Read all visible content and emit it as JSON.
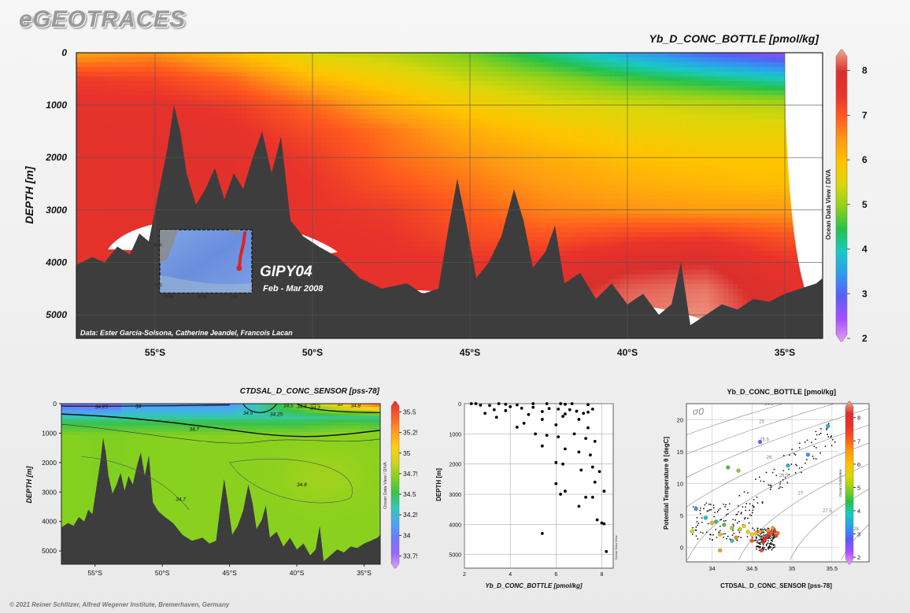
{
  "brand": "eGEOTRACES",
  "copyright": "© 2021 Reiner Schlitzer, Alfred Wegener Institute, Bremerhaven, Germany",
  "watermark": "Ocean Data View / DIVA",
  "watermark_small": "Ocean Data View",
  "colors": {
    "cmap": [
      "#e79bf5",
      "#a64fff",
      "#5a5cf6",
      "#2f9bf0",
      "#19c9c6",
      "#25c24a",
      "#8fd11a",
      "#dcd60a",
      "#ffc400",
      "#ff9a12",
      "#ff5a1e",
      "#e8322b",
      "#d9302c",
      "#f3a690"
    ],
    "ctd_cmap": [
      "#d7a2f2",
      "#9a66ff",
      "#6f79ff",
      "#4aa6f5",
      "#34c8b5",
      "#3cc24a",
      "#86d11e",
      "#cfd41a",
      "#ffcf14",
      "#ff9b22",
      "#ff5b2a",
      "#e3302c"
    ],
    "bathymetry": "#3d3d3d"
  },
  "chart_data": [
    {
      "id": "main_section",
      "type": "heatmap",
      "title": "Yb_D_CONC_BOTTLE [pmol/kg]",
      "ylabel": "DEPTH [m]",
      "xlabel": "",
      "x_ticks": [
        "55°S",
        "50°S",
        "45°S",
        "40°S",
        "35°S"
      ],
      "x_tick_values": [
        -55,
        -50,
        -45,
        -40,
        -35
      ],
      "xlim": [
        -57.5,
        -33.8
      ],
      "y_ticks": [
        "0",
        "1000",
        "2000",
        "3000",
        "4000",
        "5000"
      ],
      "y_tick_values": [
        0,
        1000,
        2000,
        3000,
        4000,
        5000
      ],
      "ylim": [
        5450,
        0
      ],
      "colorbar": {
        "ticks": [
          "2",
          "3",
          "4",
          "5",
          "6",
          "7",
          "8"
        ],
        "values": [
          2,
          3,
          4,
          5,
          6,
          7,
          8
        ],
        "range": [
          2,
          8.4
        ]
      },
      "annotations": {
        "cruise": "GIPY04",
        "dates": "Feb - Mar 2008",
        "credit": "Data: Ester Garcia-Solsona, Catherine Jeandel, Francois Lacan"
      },
      "inset_map": {
        "lat_labels": [
          "40°S",
          "70°S"
        ],
        "lon_labels": [
          "60°W",
          "30°W",
          "0°E"
        ],
        "track": [
          [
            0,
            -35
          ],
          [
            -1,
            -42
          ],
          [
            -3,
            -50
          ],
          [
            -4,
            -58
          ]
        ]
      },
      "field": {
        "lat": [
          -57.5,
          -55,
          -52.5,
          -50,
          -47.5,
          -45,
          -42.5,
          -40,
          -37.5,
          -35
        ],
        "depth": [
          0,
          500,
          1000,
          1500,
          2000,
          2500,
          3000,
          3500,
          4000,
          4500,
          5000,
          5450
        ],
        "values": [
          [
            6.3,
            6.5,
            6.0,
            5.4,
            5.2,
            4.8,
            4.2,
            3.6,
            3.0,
            2.6
          ],
          [
            7.3,
            7.2,
            6.8,
            6.1,
            5.7,
            5.3,
            5.0,
            4.6,
            4.3,
            4.0
          ],
          [
            7.5,
            7.5,
            7.3,
            6.8,
            6.2,
            5.8,
            5.5,
            5.4,
            5.3,
            5.2
          ],
          [
            7.5,
            7.6,
            7.5,
            7.1,
            6.7,
            6.2,
            5.9,
            5.7,
            5.6,
            5.6
          ],
          [
            7.5,
            7.6,
            7.6,
            7.3,
            6.8,
            6.5,
            6.2,
            6.0,
            5.9,
            5.9
          ],
          [
            7.5,
            7.6,
            7.6,
            7.4,
            7.0,
            6.7,
            6.4,
            6.2,
            6.1,
            6.0
          ],
          [
            7.5,
            7.6,
            7.6,
            7.4,
            7.3,
            6.9,
            6.6,
            6.5,
            6.4,
            6.4
          ],
          [
            7.5,
            7.6,
            7.6,
            7.5,
            7.4,
            7.1,
            7.0,
            7.2,
            7.3,
            7.0
          ],
          [
            7.5,
            7.6,
            7.6,
            7.5,
            7.5,
            7.4,
            7.5,
            7.8,
            7.9,
            7.4
          ],
          [
            7.5,
            7.6,
            7.6,
            7.5,
            7.5,
            7.5,
            7.7,
            8.1,
            8.2,
            7.6
          ],
          [
            7.5,
            7.6,
            7.6,
            7.5,
            7.5,
            7.5,
            7.8,
            8.2,
            8.3,
            7.7
          ],
          [
            7.5,
            7.6,
            7.6,
            7.5,
            7.5,
            7.5,
            7.8,
            8.2,
            8.3,
            7.7
          ]
        ]
      },
      "bathymetry": [
        [
          -57.5,
          4050
        ],
        [
          -57.0,
          3900
        ],
        [
          -56.6,
          4000
        ],
        [
          -56.2,
          3700
        ],
        [
          -55.8,
          3850
        ],
        [
          -55.5,
          3450
        ],
        [
          -55.2,
          3600
        ],
        [
          -55.0,
          3000
        ],
        [
          -54.8,
          2400
        ],
        [
          -54.6,
          1800
        ],
        [
          -54.4,
          1000
        ],
        [
          -54.2,
          1500
        ],
        [
          -54.0,
          2300
        ],
        [
          -53.7,
          2900
        ],
        [
          -53.4,
          2600
        ],
        [
          -53.1,
          2200
        ],
        [
          -52.8,
          2800
        ],
        [
          -52.5,
          2300
        ],
        [
          -52.2,
          2600
        ],
        [
          -51.9,
          2000
        ],
        [
          -51.6,
          1500
        ],
        [
          -51.3,
          2300
        ],
        [
          -51.0,
          1600
        ],
        [
          -50.7,
          3200
        ],
        [
          -50.3,
          3500
        ],
        [
          -49.8,
          3700
        ],
        [
          -49.2,
          3900
        ],
        [
          -48.5,
          4300
        ],
        [
          -47.8,
          4500
        ],
        [
          -47.0,
          4400
        ],
        [
          -46.5,
          4600
        ],
        [
          -46.0,
          4500
        ],
        [
          -45.7,
          3400
        ],
        [
          -45.4,
          2400
        ],
        [
          -45.1,
          3300
        ],
        [
          -44.8,
          4300
        ],
        [
          -44.4,
          4000
        ],
        [
          -44.0,
          3500
        ],
        [
          -43.6,
          2600
        ],
        [
          -43.3,
          3200
        ],
        [
          -43.0,
          4100
        ],
        [
          -42.6,
          3800
        ],
        [
          -42.3,
          3300
        ],
        [
          -42.0,
          4400
        ],
        [
          -41.5,
          4200
        ],
        [
          -41.0,
          4700
        ],
        [
          -40.5,
          4400
        ],
        [
          -40.0,
          4800
        ],
        [
          -39.5,
          4600
        ],
        [
          -39.0,
          5000
        ],
        [
          -38.6,
          4800
        ],
        [
          -38.3,
          4000
        ],
        [
          -38.0,
          5200
        ],
        [
          -37.5,
          5000
        ],
        [
          -37.0,
          4800
        ],
        [
          -36.5,
          4900
        ],
        [
          -36.0,
          4700
        ],
        [
          -35.5,
          4750
        ],
        [
          -35.0,
          4600
        ],
        [
          -34.5,
          4500
        ],
        [
          -34.0,
          4400
        ],
        [
          -33.8,
          4300
        ]
      ],
      "white_gap_lat_min": -35.0
    },
    {
      "id": "ctd_section",
      "type": "heatmap",
      "title": "CTDSAL_D_CONC_SENSOR [pss-78]",
      "ylabel": "DEPTH [m]",
      "x_ticks": [
        "55°S",
        "50°S",
        "45°S",
        "40°S",
        "35°S"
      ],
      "x_tick_values": [
        -55,
        -50,
        -45,
        -40,
        -35
      ],
      "xlim": [
        -57.5,
        -33.8
      ],
      "y_ticks": [
        "0",
        "1000",
        "2000",
        "3000",
        "4000",
        "5000"
      ],
      "y_tick_values": [
        0,
        1000,
        2000,
        3000,
        4000,
        5000
      ],
      "ylim": [
        5450,
        0
      ],
      "colorbar": {
        "ticks": [
          "35.5",
          "35.25",
          "35",
          "34.75",
          "34.5",
          "34.25",
          "34",
          "33.75"
        ],
        "values": [
          35.5,
          35.25,
          35,
          34.75,
          34.5,
          34.25,
          34,
          33.75
        ],
        "range": [
          33.65,
          35.6
        ]
      },
      "contour_labels": [
        "34.25",
        "34",
        "34.5",
        "34.5",
        "34.25",
        "34.8",
        "34.7",
        "35",
        "34.5",
        "34.8",
        "34.7",
        "34.8",
        "34.7"
      ]
    },
    {
      "id": "depth_profile",
      "type": "scatter",
      "xlabel": "Yb_D_CONC_BOTTLE [pmol/kg]",
      "ylabel": "DEPTH [m]",
      "x_ticks": [
        "2",
        "4",
        "6",
        "8"
      ],
      "x_tick_values": [
        2,
        4,
        6,
        8
      ],
      "xlim": [
        2,
        8.5
      ],
      "y_ticks": [
        "0",
        "1000",
        "2000",
        "3000",
        "4000",
        "5000"
      ],
      "y_tick_values": [
        0,
        1000,
        2000,
        3000,
        4000,
        5000
      ],
      "ylim": [
        5450,
        0
      ],
      "points": [
        [
          2.3,
          0
        ],
        [
          2.5,
          0
        ],
        [
          2.7,
          50
        ],
        [
          3.1,
          60
        ],
        [
          3.5,
          0
        ],
        [
          3.8,
          20
        ],
        [
          4.3,
          40
        ],
        [
          5.0,
          0
        ],
        [
          5.6,
          0
        ],
        [
          6.2,
          0
        ],
        [
          6.4,
          20
        ],
        [
          6.7,
          0
        ],
        [
          7.4,
          30
        ],
        [
          2.9,
          320
        ],
        [
          3.3,
          200
        ],
        [
          3.8,
          230
        ],
        [
          4.0,
          100
        ],
        [
          4.5,
          150
        ],
        [
          4.8,
          360
        ],
        [
          5.0,
          120
        ],
        [
          5.4,
          260
        ],
        [
          5.7,
          160
        ],
        [
          6.1,
          180
        ],
        [
          6.4,
          340
        ],
        [
          6.6,
          200
        ],
        [
          6.9,
          250
        ],
        [
          7.2,
          320
        ],
        [
          7.4,
          280
        ],
        [
          7.6,
          180
        ],
        [
          3.4,
          450
        ],
        [
          4.6,
          650
        ],
        [
          5.4,
          520
        ],
        [
          6.0,
          700
        ],
        [
          6.3,
          420
        ],
        [
          7.0,
          520
        ],
        [
          7.4,
          800
        ],
        [
          4.3,
          780
        ],
        [
          5.1,
          1000
        ],
        [
          5.6,
          1050
        ],
        [
          6.1,
          1100
        ],
        [
          6.8,
          1000
        ],
        [
          7.3,
          1150
        ],
        [
          7.7,
          1250
        ],
        [
          6.4,
          1500
        ],
        [
          7.0,
          1600
        ],
        [
          7.5,
          1700
        ],
        [
          5.4,
          1400
        ],
        [
          6.0,
          1950
        ],
        [
          6.3,
          2000
        ],
        [
          7.1,
          2200
        ],
        [
          7.6,
          2100
        ],
        [
          7.9,
          2250
        ],
        [
          6.0,
          2650
        ],
        [
          6.4,
          2900
        ],
        [
          7.7,
          2600
        ],
        [
          7.3,
          3100
        ],
        [
          6.2,
          3000
        ],
        [
          7.0,
          3400
        ],
        [
          7.6,
          3100
        ],
        [
          8.1,
          2900
        ],
        [
          7.8,
          3850
        ],
        [
          8.0,
          3950
        ],
        [
          8.1,
          3980
        ],
        [
          5.4,
          4300
        ],
        [
          8.2,
          4900
        ]
      ]
    },
    {
      "id": "ts_diagram",
      "type": "scatter",
      "title": "Yb_D_CONC_BOTTLE [pmol/kg]",
      "xlabel": "CTDSAL_D_CONC_SENSOR [pss-78]",
      "ylabel": "Potential Temperature θ [degC]",
      "sigma_label": "σ0",
      "x_ticks": [
        "34",
        "34.5",
        "35",
        "35.5"
      ],
      "x_tick_values": [
        34,
        34.5,
        35,
        35.5
      ],
      "xlim": [
        33.68,
        35.58
      ],
      "y_ticks": [
        "0",
        "5",
        "10",
        "15",
        "20"
      ],
      "y_tick_values": [
        0,
        5,
        10,
        15,
        20
      ],
      "ylim": [
        -2.3,
        22.5
      ],
      "isopycnal_labels": [
        "24.5",
        "25",
        "25.5",
        "26",
        "26.5",
        "27",
        "27.5",
        "28"
      ],
      "colorbar": {
        "ticks": [
          "8",
          "7",
          "6",
          "5",
          "4",
          "3",
          "2"
        ],
        "values": [
          8,
          7,
          6,
          5,
          4,
          3,
          2
        ],
        "range": [
          1.8,
          8.6
        ]
      },
      "colored_points": [
        [
          34.64,
          0.8,
          7.8
        ],
        [
          34.66,
          1.2,
          7.6
        ],
        [
          34.68,
          1.6,
          7.7
        ],
        [
          34.7,
          1.9,
          7.5
        ],
        [
          34.72,
          2.1,
          7.3
        ],
        [
          34.74,
          2.3,
          7.1
        ],
        [
          34.7,
          2.6,
          6.6
        ],
        [
          34.6,
          2.4,
          6.3
        ],
        [
          34.55,
          2.2,
          6.0
        ],
        [
          34.5,
          2.0,
          5.8
        ],
        [
          34.45,
          2.4,
          5.5
        ],
        [
          34.35,
          2.8,
          5.2
        ],
        [
          34.25,
          3.0,
          5.0
        ],
        [
          34.15,
          3.5,
          4.6
        ],
        [
          34.05,
          4.0,
          4.2
        ],
        [
          33.92,
          4.6,
          3.8
        ],
        [
          33.8,
          6.0,
          3.3
        ],
        [
          33.75,
          2.5,
          5.4
        ],
        [
          34.1,
          2.0,
          6.2
        ],
        [
          34.3,
          1.5,
          6.7
        ],
        [
          34.5,
          1.0,
          7.0
        ],
        [
          34.78,
          2.5,
          7.9
        ],
        [
          34.62,
          -0.5,
          8.2
        ],
        [
          34.8,
          1.8,
          7.4
        ],
        [
          34.2,
          12.5,
          4.6
        ],
        [
          34.33,
          12.0,
          4.9
        ],
        [
          34.95,
          12.8,
          3.6
        ],
        [
          35.2,
          14.5,
          3.3
        ],
        [
          35.45,
          19.0,
          3.6
        ],
        [
          34.6,
          16.5,
          2.7
        ],
        [
          34.82,
          2.2,
          6.8
        ],
        [
          34.76,
          3.0,
          6.5
        ],
        [
          34.4,
          3.3,
          5.9
        ],
        [
          34.0,
          3.8,
          6.3
        ],
        [
          34.25,
          1.0,
          4.0
        ],
        [
          34.1,
          -0.5,
          6.4
        ]
      ]
    }
  ]
}
